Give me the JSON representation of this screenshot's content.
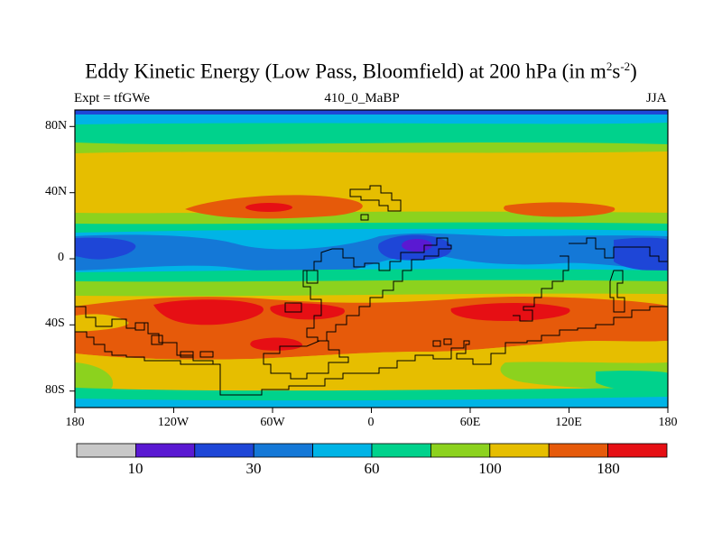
{
  "title": {
    "main": "Eddy Kinetic Energy (Low Pass, Bloomfield) at 200 hPa (in m",
    "sup1": "2",
    "mid": "s",
    "sup2": "-2",
    "end": ")"
  },
  "left_label": "Expt = tfGWe",
  "center_label": "410_0_MaBP",
  "right_label": "JJA",
  "lat_labels": [
    "80N",
    "40N",
    "0",
    "40S",
    "80S"
  ],
  "lon_labels": [
    "180",
    "120W",
    "60W",
    "0",
    "60E",
    "120E",
    "180"
  ],
  "colorbar": {
    "colors": [
      "#c8c8c8",
      "#5a19d2",
      "#1e46d7",
      "#1478d7",
      "#00b4e6",
      "#00d28c",
      "#8cd21e",
      "#e6be00",
      "#e65a0a",
      "#e60f14"
    ],
    "labels": [
      "10",
      "30",
      "60",
      "100",
      "180"
    ]
  }
}
